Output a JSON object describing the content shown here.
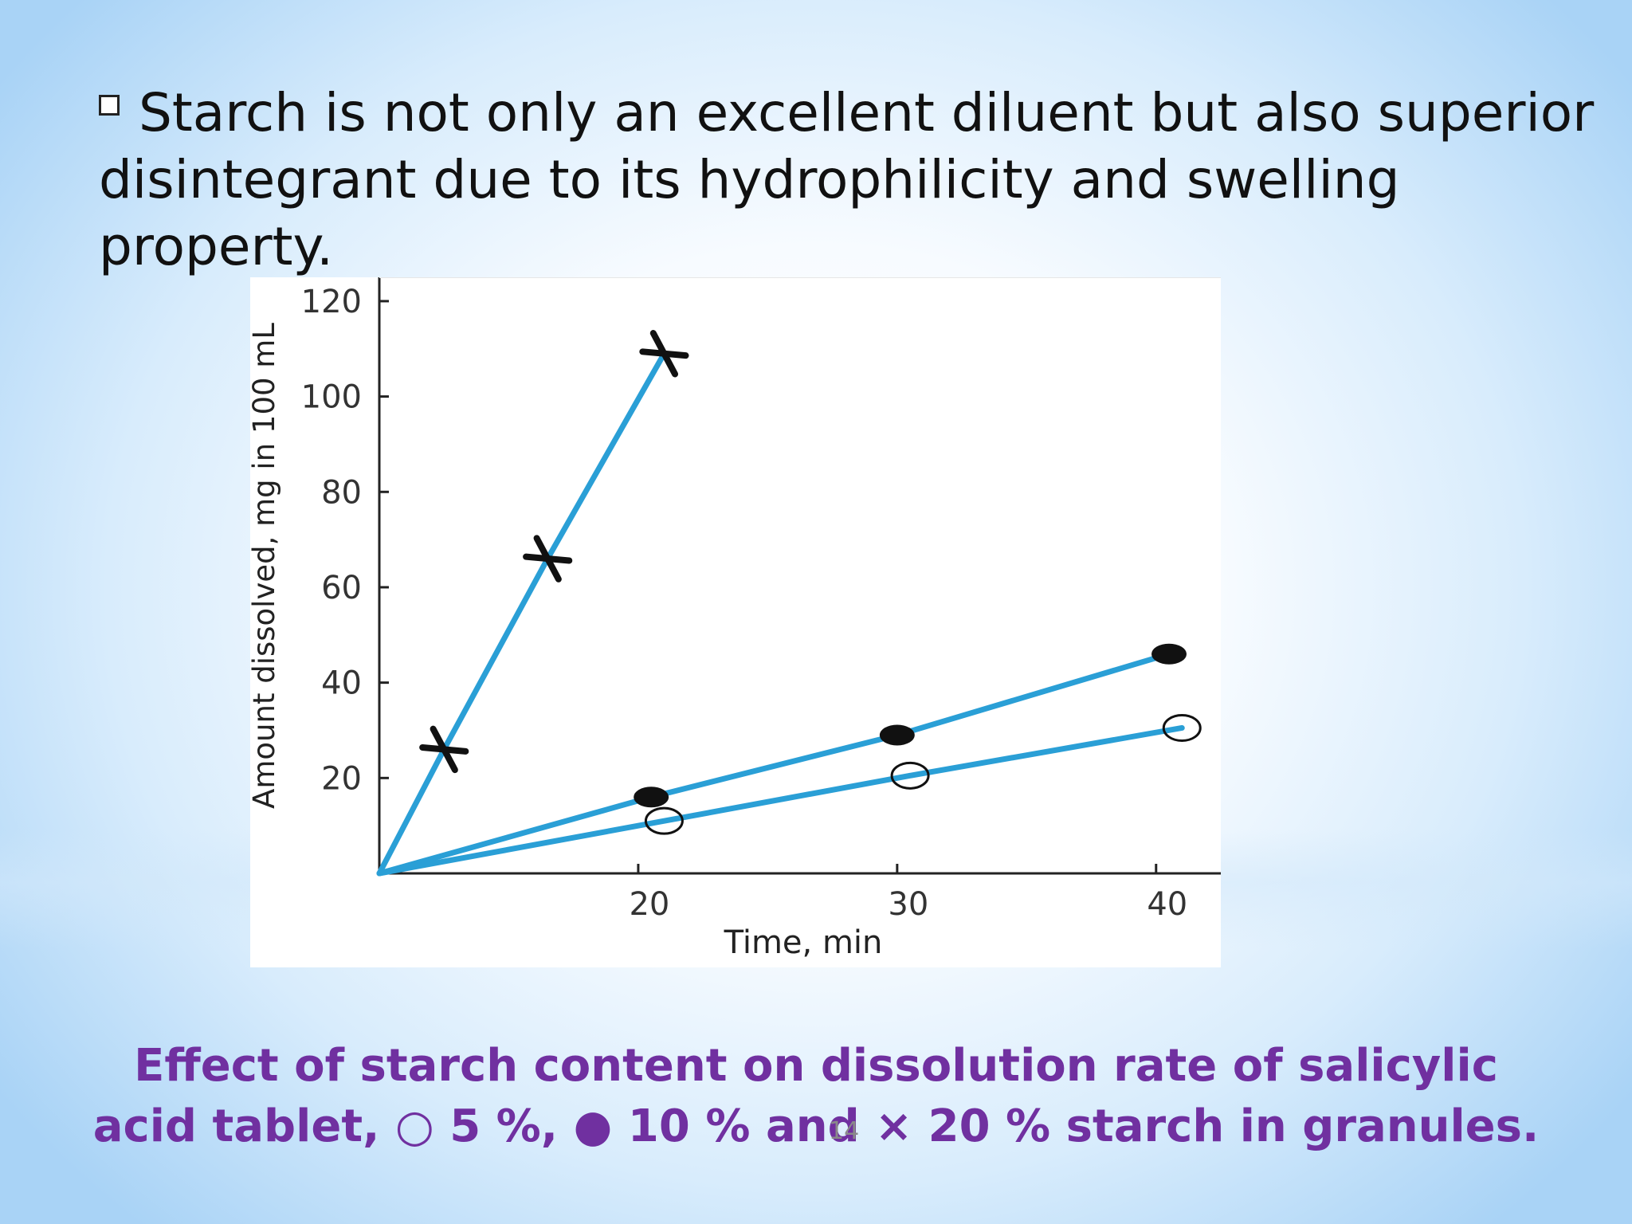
{
  "slide": {
    "bullet_text": "Starch is not only an excellent diluent but also superior disintegrant due to its hydrophilicity and swelling property.",
    "caption_line1": "Effect of starch content on dissolution rate of salicylic",
    "caption_line2": "acid tablet, ○ 5 %, ● 10 % and × 20 % starch in granules.",
    "slide_number": "14",
    "caption_color": "#7030a0"
  },
  "chart_data": {
    "type": "line",
    "title": "",
    "xlabel": "Time, min",
    "ylabel": "Amount dissolved, mg in 100 mL",
    "xlim": [
      10,
      42.5
    ],
    "ylim": [
      0,
      125
    ],
    "x_ticks": [
      20,
      30,
      40
    ],
    "y_ticks": [
      20,
      40,
      60,
      80,
      100,
      120
    ],
    "grid": false,
    "line_color": "#2a9fd6",
    "series": [
      {
        "marker": "x",
        "x": [
          10,
          12.5,
          16.5,
          21
        ],
        "y": [
          0,
          26,
          66,
          109
        ]
      },
      {
        "marker": "filled-circle",
        "x": [
          10,
          20.5,
          30,
          40.5
        ],
        "y": [
          0,
          16,
          29,
          46
        ]
      },
      {
        "marker": "open-circle",
        "x": [
          10,
          21,
          30.5,
          41
        ],
        "y": [
          0,
          11,
          20.5,
          30.5
        ]
      }
    ]
  }
}
